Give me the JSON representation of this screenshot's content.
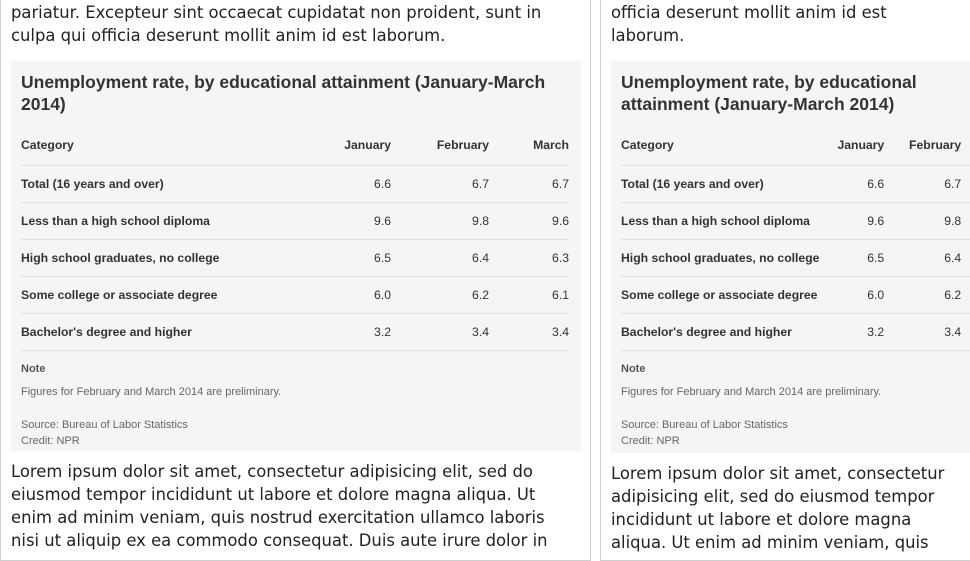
{
  "left": {
    "intro_lines": [
      "pariatur. Excepteur sint occaecat cupidatat non proident, sunt in",
      "culpa qui officia deserunt mollit anim id est laborum."
    ],
    "after_lines": [
      "Lorem ipsum dolor sit amet, consectetur adipisicing elit, sed do",
      "eiusmod tempor incididunt ut labore et dolore magna aliqua. Ut",
      "enim ad minim veniam, quis nostrud exercitation ullamco laboris",
      "nisi ut aliquip ex ea commodo consequat. Duis aute irure dolor in"
    ]
  },
  "right": {
    "intro_lines": [
      "officia deserunt mollit anim id est",
      "laborum."
    ],
    "after_lines": [
      "Lorem ipsum dolor sit amet, consectetur",
      "adipisicing elit, sed do eiusmod tempor",
      "incididunt ut labore et dolore magna",
      "aliqua. Ut enim ad minim veniam, quis"
    ]
  },
  "card": {
    "title_left_lines": [
      "Unemployment rate, by educational attainment (January-March",
      "2014)"
    ],
    "title_right_lines": [
      "Unemployment rate, by educational",
      "attainment (January-March 2014)"
    ],
    "columns": [
      "Category",
      "January",
      "February",
      "March"
    ],
    "rows": [
      {
        "category": "Total (16 years and over)",
        "jan": "6.6",
        "feb": "6.7",
        "mar": "6.7"
      },
      {
        "category": "Less than a high school diploma",
        "jan": "9.6",
        "feb": "9.8",
        "mar": "9.6"
      },
      {
        "category": "High school graduates, no college",
        "jan": "6.5",
        "feb": "6.4",
        "mar": "6.3"
      },
      {
        "category": "Some college or associate degree",
        "jan": "6.0",
        "feb": "6.2",
        "mar": "6.1"
      },
      {
        "category": "Bachelor's degree and higher",
        "jan": "3.2",
        "feb": "3.4",
        "mar": "3.4"
      }
    ],
    "note_label": "Note",
    "note_text": "Figures for February and March 2014 are preliminary.",
    "source": "Source: Bureau of Labor Statistics",
    "credit": "Credit: NPR"
  }
}
